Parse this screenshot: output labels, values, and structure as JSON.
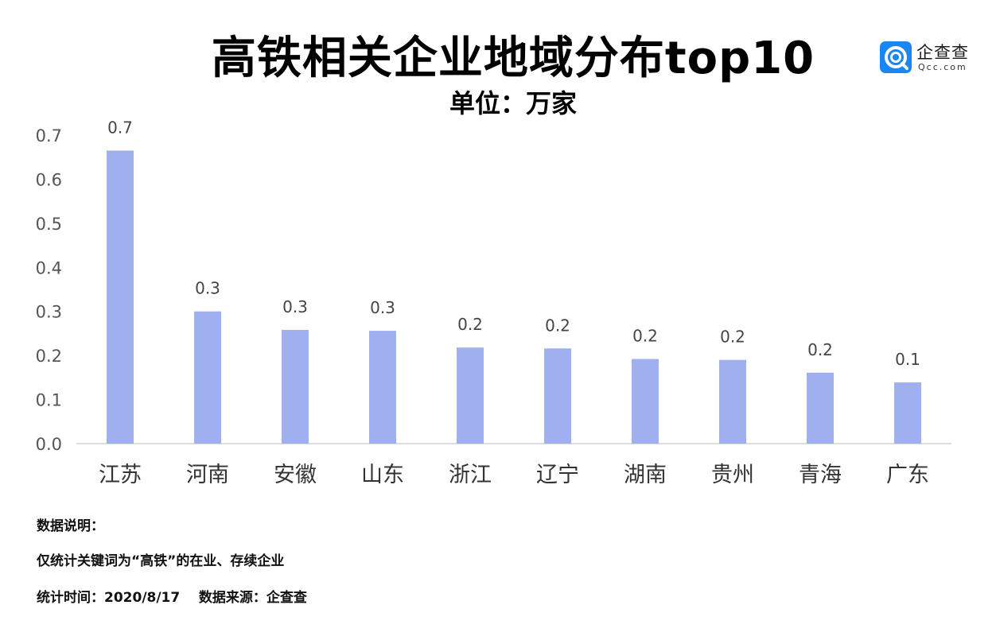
{
  "header": {
    "title": "高铁相关企业地域分布top10",
    "subtitle": "单位：万家"
  },
  "logo": {
    "name": "企查查",
    "domain": "Qcc.com",
    "icon": "qcc-logo-icon",
    "color": "#1a86f0"
  },
  "chart_data": {
    "type": "bar",
    "title": "高铁相关企业地域分布top10",
    "subtitle": "单位：万家",
    "categories": [
      "江苏",
      "河南",
      "安徽",
      "山东",
      "浙江",
      "辽宁",
      "湖南",
      "贵州",
      "青海",
      "广东"
    ],
    "values": [
      0.665,
      0.3,
      0.258,
      0.256,
      0.218,
      0.216,
      0.192,
      0.19,
      0.161,
      0.139
    ],
    "data_labels": [
      "0.7",
      "0.3",
      "0.3",
      "0.3",
      "0.2",
      "0.2",
      "0.2",
      "0.2",
      "0.2",
      "0.1"
    ],
    "yticks": [
      "0.0",
      "0.1",
      "0.2",
      "0.3",
      "0.4",
      "0.5",
      "0.6",
      "0.7"
    ],
    "ylim": [
      0,
      0.7
    ],
    "xlabel": "",
    "ylabel": "",
    "grid": false,
    "bar_color": "#9fb0ee"
  },
  "notes": {
    "heading": "数据说明：",
    "line1": "仅统计关键词为“高铁”的在业、存续企业",
    "line2": "统计时间：2020/8/17    数据来源：企查查"
  }
}
